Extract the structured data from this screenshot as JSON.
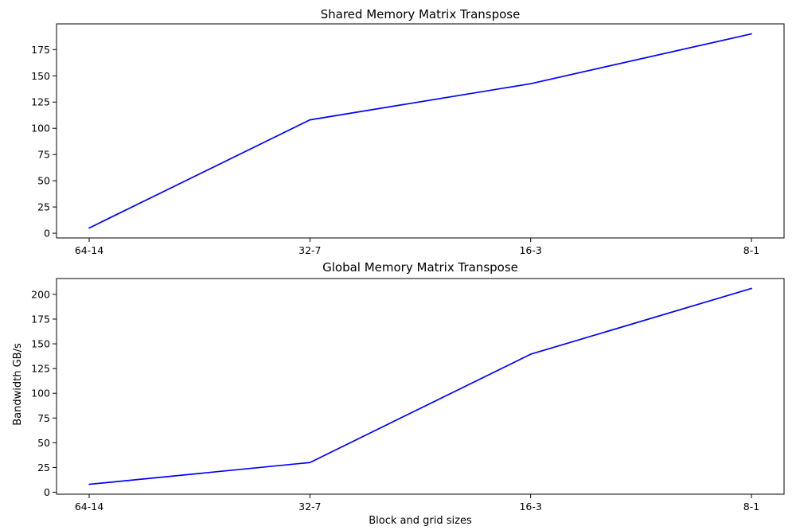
{
  "chart_data": [
    {
      "type": "line",
      "title": "Shared Memory Matrix Transpose",
      "xlabel": "",
      "ylabel": "",
      "categories": [
        "64-14",
        "32-7",
        "16-3",
        "8-1"
      ],
      "series": [
        {
          "values": [
            5,
            108,
            142.5,
            190
          ],
          "color": "#0000ff"
        }
      ],
      "ylim": [
        -4.5,
        199.5
      ],
      "yticks": [
        0,
        25,
        50,
        75,
        100,
        125,
        150,
        175
      ],
      "grid": false
    },
    {
      "type": "line",
      "title": "Global Memory Matrix Transpose",
      "xlabel": "Block and grid sizes",
      "ylabel": "Bandwidth GB/s",
      "categories": [
        "64-14",
        "32-7",
        "16-3",
        "8-1"
      ],
      "series": [
        {
          "values": [
            8,
            30,
            139.5,
            206
          ],
          "color": "#0000ff"
        }
      ],
      "ylim": [
        -2,
        216
      ],
      "yticks": [
        0,
        25,
        50,
        75,
        100,
        125,
        150,
        175,
        200
      ],
      "grid": false
    }
  ]
}
